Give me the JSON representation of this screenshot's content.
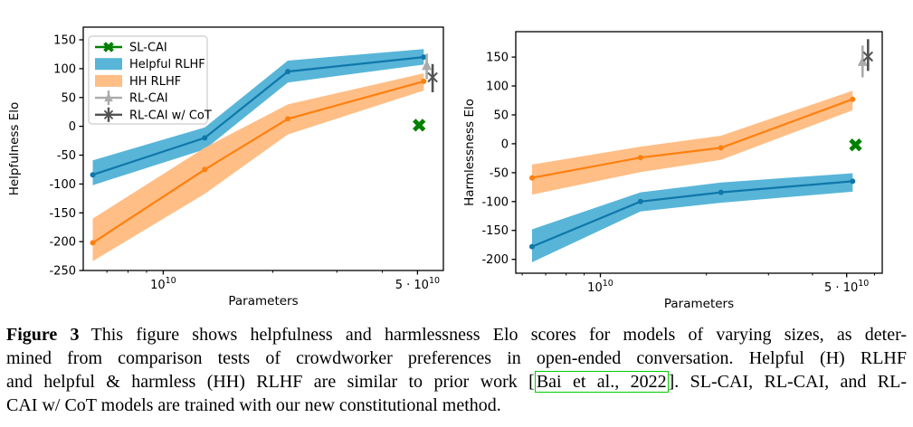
{
  "figure": {
    "caption": {
      "label": "Figure 3",
      "link_text": "Bai et al., 2022",
      "lines": [
        {
          "justify": true,
          "segments": [
            {
              "t": "label",
              "text": "Figure 3"
            },
            {
              "t": "text",
              "text": "This figure shows helpfulness and harmlessness Elo scores for models of varying sizes, as deter-"
            }
          ]
        },
        {
          "justify": true,
          "segments": [
            {
              "t": "text",
              "text": "mined from comparison tests of crowdworker preferences in open-ended conversation.  Helpful (H) RLHF"
            }
          ]
        },
        {
          "justify": true,
          "segments": [
            {
              "t": "text",
              "text": "and helpful & harmless (HH) RLHF are similar to prior work ["
            },
            {
              "t": "link",
              "text": "Bai et al., 2022"
            },
            {
              "t": "text",
              "text": "]. SL-CAI, RL-CAI, and RL-"
            }
          ]
        },
        {
          "justify": false,
          "segments": [
            {
              "t": "text",
              "text": "CAI w/ CoT models are trained with our new constitutional method."
            }
          ]
        }
      ]
    }
  },
  "colors": {
    "helpful_rlhf_line": "#0f77a9",
    "helpful_rlhf_band": "#58b5d8",
    "hh_rlhf_line": "#ff7f0e",
    "hh_rlhf_band": "#ffbe86",
    "sl_cai": "#008000",
    "rl_cai": "#ababab",
    "rl_cai_cot": "#525252",
    "citation_box": "#00cc00",
    "axis": "#000000",
    "legend_border": "#cccccc"
  },
  "chart_data": [
    {
      "type": "line",
      "title": "",
      "xlabel": "Parameters",
      "ylabel": "Helpfulness Elo",
      "x_scale": "log10",
      "grid": false,
      "x": [
        6400000000.0,
        13000000000.0,
        22000000000.0,
        52000000000.0
      ],
      "xlim_log10": [
        9.78,
        10.77
      ],
      "ylim": [
        -250,
        172
      ],
      "yticks": [
        150,
        100,
        50,
        0,
        -50,
        -100,
        -150,
        -200,
        -250
      ],
      "xticks": [
        {
          "value": 10000000000.0,
          "prefix": "",
          "base": "10",
          "exponent": "10"
        },
        {
          "value": 50000000000.0,
          "prefix": "5 · ",
          "base": "10",
          "exponent": "10"
        }
      ],
      "xminorticks": [
        6000000000.0,
        7000000000.0,
        8000000000.0,
        9000000000.0,
        20000000000.0,
        30000000000.0,
        40000000000.0,
        60000000000.0
      ],
      "series": [
        {
          "name": "Helpful RLHF",
          "color_key": "helpful_rlhf_line",
          "band_key": "helpful_rlhf_band",
          "values": [
            -84,
            -20,
            95,
            120
          ],
          "lower": [
            -102,
            -40,
            76,
            107
          ],
          "upper": [
            -59,
            -2,
            114,
            134
          ]
        },
        {
          "name": "HH RLHF",
          "color_key": "hh_rlhf_line",
          "band_key": "hh_rlhf_band",
          "values": [
            -202,
            -75,
            13,
            78
          ],
          "lower": [
            -234,
            -117,
            -14,
            62
          ],
          "upper": [
            -160,
            -37,
            38,
            92
          ]
        }
      ],
      "points": [
        {
          "name": "SL-CAI",
          "x": 50500000000.0,
          "y": 2,
          "marker": "X",
          "color_key": "sl_cai"
        },
        {
          "name": "RL-CAI",
          "x": 53000000000.0,
          "y": 105,
          "err": [
            82,
            126
          ],
          "marker": "triangle",
          "color_key": "rl_cai"
        },
        {
          "name": "RL-CAI w/ CoT",
          "x": 55000000000.0,
          "y": 85,
          "err": [
            59,
            108
          ],
          "marker": "x",
          "color_key": "rl_cai_cot"
        }
      ],
      "legend": {
        "position": "upper-left",
        "entries": [
          {
            "label": "SL-CAI",
            "swatch": "line-X",
            "color_key": "sl_cai"
          },
          {
            "label": "Helpful RLHF",
            "swatch": "patch",
            "color_key": "helpful_rlhf_band"
          },
          {
            "label": "HH RLHF",
            "swatch": "patch",
            "color_key": "hh_rlhf_band"
          },
          {
            "label": "RL-CAI",
            "swatch": "errline-triangle",
            "color_key": "rl_cai"
          },
          {
            "label": "RL-CAI w/ CoT",
            "swatch": "errline-x",
            "color_key": "rl_cai_cot"
          }
        ]
      }
    },
    {
      "type": "line",
      "title": "",
      "xlabel": "Parameters",
      "ylabel": "Harmlessness Elo",
      "x_scale": "log10",
      "grid": false,
      "x": [
        6400000000.0,
        13000000000.0,
        22000000000.0,
        52000000000.0
      ],
      "xlim_log10": [
        9.76,
        10.8
      ],
      "ylim": [
        -224,
        194
      ],
      "yticks": [
        150,
        100,
        50,
        0,
        -50,
        -100,
        -150,
        -200
      ],
      "xticks": [
        {
          "value": 10000000000.0,
          "prefix": "",
          "base": "10",
          "exponent": "10"
        },
        {
          "value": 50000000000.0,
          "prefix": "5 · ",
          "base": "10",
          "exponent": "10"
        }
      ],
      "xminorticks": [
        6000000000.0,
        7000000000.0,
        8000000000.0,
        9000000000.0,
        20000000000.0,
        30000000000.0,
        40000000000.0,
        60000000000.0
      ],
      "series": [
        {
          "name": "Helpful RLHF",
          "color_key": "helpful_rlhf_line",
          "band_key": "helpful_rlhf_band",
          "values": [
            -178,
            -100,
            -84,
            -65
          ],
          "lower": [
            -205,
            -117,
            -102,
            -83
          ],
          "upper": [
            -148,
            -84,
            -67,
            -51
          ]
        },
        {
          "name": "HH RLHF",
          "color_key": "hh_rlhf_line",
          "band_key": "hh_rlhf_band",
          "values": [
            -59,
            -24,
            -7,
            77
          ],
          "lower": [
            -88,
            -49,
            -28,
            58
          ],
          "upper": [
            -36,
            -5,
            14,
            92
          ]
        }
      ],
      "points": [
        {
          "name": "SL-CAI",
          "x": 53000000000.0,
          "y": -2,
          "marker": "X",
          "color_key": "sl_cai"
        },
        {
          "name": "RL-CAI",
          "x": 55500000000.0,
          "y": 142,
          "err": [
            115,
            170
          ],
          "marker": "triangle",
          "color_key": "rl_cai"
        },
        {
          "name": "RL-CAI w/ CoT",
          "x": 57500000000.0,
          "y": 151,
          "err": [
            126,
            181
          ],
          "marker": "x",
          "color_key": "rl_cai_cot"
        }
      ],
      "legend": null
    }
  ]
}
